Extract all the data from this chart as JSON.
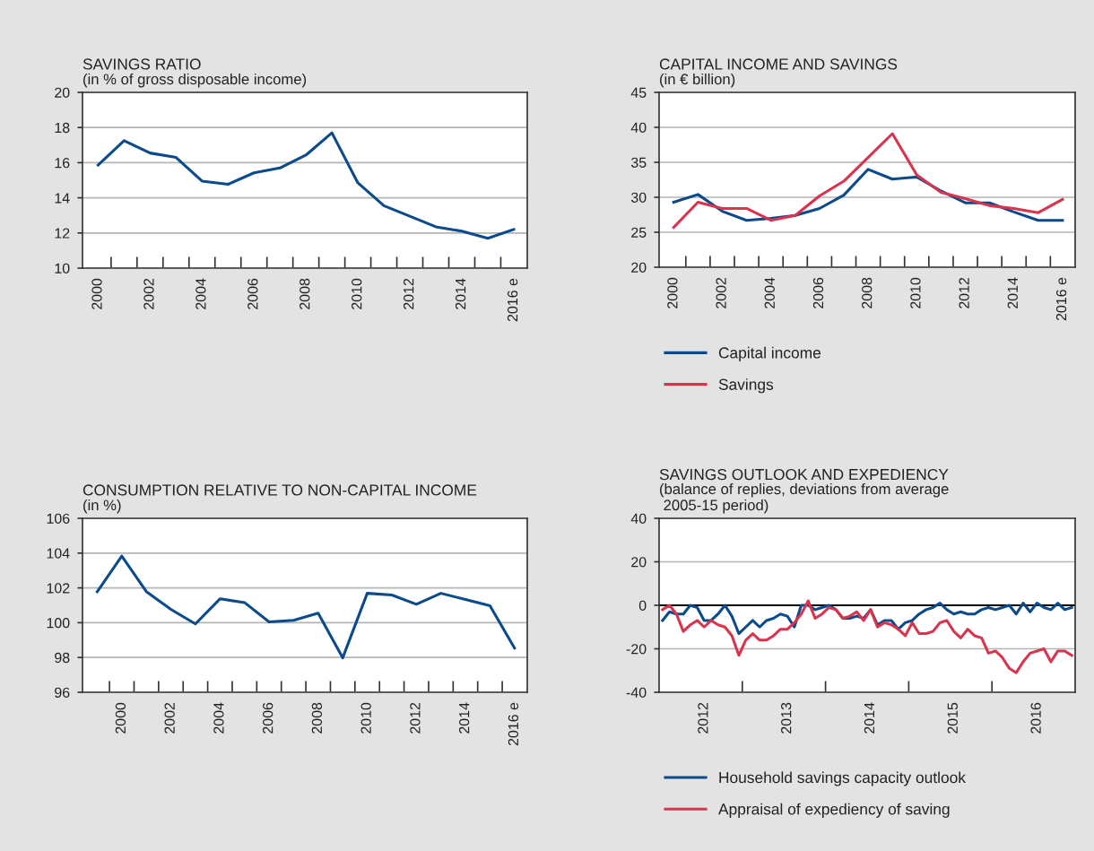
{
  "chart_data": [
    {
      "type": "line",
      "title": "SAVINGS RATIO",
      "subtitle": "(in % of gross disposable income)",
      "categories": [
        "2000",
        null,
        "2002",
        null,
        "2004",
        null,
        "2006",
        null,
        "2008",
        null,
        "2010",
        null,
        "2012",
        null,
        "2014",
        null,
        "2016 e"
      ],
      "series": [
        {
          "color": "#0b4a8b",
          "values": [
            15.86,
            17.25,
            16.55,
            16.3,
            14.95,
            14.77,
            15.42,
            15.7,
            16.43,
            17.7,
            14.85,
            13.55,
            12.95,
            12.35,
            12.1,
            11.7,
            12.2
          ]
        }
      ],
      "ylim": [
        10,
        20
      ],
      "yticks": [
        10,
        12,
        14,
        16,
        18,
        20
      ],
      "grid": "y"
    },
    {
      "type": "line",
      "title": "CAPITAL INCOME AND SAVINGS",
      "subtitle": "(in € billion)",
      "categories": [
        "2000",
        null,
        "2002",
        null,
        "2004",
        null,
        "2006",
        null,
        "2008",
        null,
        "2010",
        null,
        "2012",
        null,
        "2014",
        null,
        "2016 e"
      ],
      "series": [
        {
          "name": "Capital income",
          "color": "#0b4a8b",
          "values": [
            29.3,
            30.4,
            28.0,
            26.7,
            27.0,
            27.4,
            28.4,
            30.3,
            34.0,
            32.6,
            32.9,
            30.9,
            29.2,
            29.2,
            27.9,
            26.7,
            26.7
          ]
        },
        {
          "name": "Savings",
          "color": "#d9334d",
          "values": [
            25.7,
            29.3,
            28.4,
            28.4,
            26.7,
            27.4,
            30.2,
            32.3,
            35.7,
            39.1,
            33.2,
            30.7,
            29.8,
            28.8,
            28.4,
            27.8,
            29.7
          ]
        }
      ],
      "ylim": [
        20,
        45
      ],
      "yticks": [
        20,
        25,
        30,
        35,
        40,
        45
      ],
      "grid": "y",
      "legend": "bottom"
    },
    {
      "type": "line",
      "title": "CONSUMPTION RELATIVE TO NON-CAPITAL INCOME",
      "subtitle": "(in %)",
      "categories": [
        null,
        "2000",
        null,
        "2002",
        null,
        "2004",
        null,
        "2006",
        null,
        "2008",
        null,
        "2010",
        null,
        "2012",
        null,
        "2014",
        null,
        "2016 e"
      ],
      "series": [
        {
          "color": "#0b4a8b",
          "values": [
            101.78,
            103.83,
            101.79,
            100.77,
            99.93,
            101.37,
            101.16,
            100.05,
            100.14,
            100.55,
            97.98,
            101.69,
            101.59,
            101.06,
            101.69,
            101.33,
            100.97,
            98.54
          ]
        }
      ],
      "ylim": [
        96,
        106
      ],
      "yticks": [
        96,
        98,
        100,
        102,
        104,
        106
      ],
      "grid": "y"
    },
    {
      "type": "line",
      "title": "SAVINGS OUTLOOK AND EXPEDIENCY",
      "subtitle": "(balance of replies, deviations from average\n 2005-15 period)",
      "categories": [
        null,
        null,
        null,
        null,
        null,
        null,
        "2012",
        null,
        null,
        null,
        null,
        null,
        null,
        null,
        null,
        null,
        null,
        null,
        "2013",
        null,
        null,
        null,
        null,
        null,
        null,
        null,
        null,
        null,
        null,
        null,
        "2014",
        null,
        null,
        null,
        null,
        null,
        null,
        null,
        null,
        null,
        null,
        null,
        "2015",
        null,
        null,
        null,
        null,
        null,
        null,
        null,
        null,
        null,
        null,
        null,
        "2016",
        null,
        null,
        null,
        null,
        null
      ],
      "series": [
        {
          "name": "Household savings capacity outlook",
          "color": "#0b4a8b",
          "values": [
            -7,
            -3,
            -4,
            -4,
            0,
            -1,
            -7,
            -7,
            -4,
            0,
            -5,
            -13,
            -10,
            -7,
            -10,
            -7,
            -6,
            -4,
            -5,
            -10,
            0,
            0,
            -2,
            -1,
            0,
            -2,
            -6,
            -6,
            -5,
            -6,
            -2,
            -9,
            -7,
            -7,
            -11,
            -8,
            -7,
            -4,
            -2,
            -1,
            1,
            -2,
            -4,
            -3,
            -4,
            -4,
            -2,
            -1,
            -2,
            -1,
            0,
            -4,
            1,
            -3,
            1,
            -1,
            -2,
            1,
            -2,
            -1
          ]
        },
        {
          "name": "Appraisal of expediency of saving",
          "color": "#d9334d",
          "values": [
            -2,
            0,
            -4,
            -12,
            -9,
            -7,
            -10,
            -7,
            -9,
            -10,
            -14,
            -23,
            -16,
            -13,
            -16,
            -16,
            -14,
            -11,
            -11,
            -8,
            -4,
            2,
            -6,
            -4,
            -1,
            -2,
            -6,
            -5,
            -3,
            -7,
            -2,
            -10,
            -8,
            -9,
            -11,
            -14,
            -8,
            -13,
            -13,
            -12,
            -8,
            -7,
            -12,
            -15,
            -11,
            -14,
            -15,
            -22,
            -21,
            -24,
            -29,
            -31,
            -26,
            -22,
            -21,
            -20,
            -26,
            -21,
            -21,
            -23
          ]
        }
      ],
      "ylim": [
        -40,
        40
      ],
      "yticks": [
        -40,
        -20,
        0,
        20,
        40
      ],
      "grid": "y",
      "legend": "bottom",
      "ref_lines": [
        {
          "axis": "y",
          "value": 0,
          "color": "#000000"
        }
      ]
    }
  ]
}
